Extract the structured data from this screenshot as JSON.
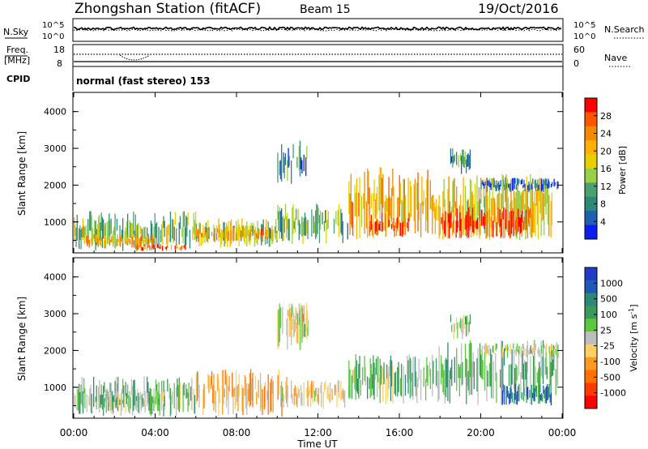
{
  "header": {
    "station": "Zhongshan Station (fitACF)",
    "beam": "Beam 15",
    "date": "19/Oct/2016"
  },
  "strip": {
    "nsky_label": "N.Sky",
    "nsearch_label": "N.Search",
    "nsky_ticks": [
      "10^5",
      "10^0"
    ],
    "nsearch_ticks": [
      "10^5",
      "10^0"
    ],
    "freq_label": "Freq.",
    "freq_unit": "[MHz]",
    "freq_ticks": [
      "18",
      "8"
    ],
    "nave_label": "Nave",
    "nave_ticks": [
      "60",
      "0"
    ],
    "cpid_label": "CPID",
    "cpid_text": "normal (fast stereo) 153"
  },
  "power_colorbar": {
    "label": "Power [dB]",
    "ticks": [
      "28",
      "24",
      "20",
      "16",
      "12",
      "8",
      "4"
    ],
    "colors": [
      "#ff0000",
      "#ff5500",
      "#f28a00",
      "#ffb000",
      "#e8d000",
      "#98d048",
      "#4aa070",
      "#2a8a78",
      "#1f60b0",
      "#0a1ef0"
    ]
  },
  "velocity_colorbar": {
    "label": "Velocity [m s^-1]",
    "ticks": [
      "1000",
      "500",
      "100",
      "25",
      "-25",
      "-100",
      "-500",
      "-1000"
    ],
    "colors": [
      "#1f3cc8",
      "#2058b8",
      "#2a8a78",
      "#3a9a5a",
      "#5cc840",
      "#bebebe",
      "#ffd060",
      "#ff9a20",
      "#ff7000",
      "#ff3a00",
      "#ff0000"
    ]
  },
  "chart_data": [
    {
      "type": "heatmap",
      "title": "Power",
      "ylabel": "Slant Range [km]",
      "xlabel": "",
      "x_range_hours": [
        0,
        24
      ],
      "y_range_km": [
        180,
        4500
      ],
      "yticks": [
        "1000",
        "2000",
        "3000",
        "4000"
      ],
      "colorbar_label": "Power [dB]",
      "color_range": [
        0,
        30
      ],
      "regions": [
        {
          "t": [
            0.0,
            6.0
          ],
          "r": [
            200,
            1300
          ],
          "v": 12
        },
        {
          "t": [
            0.5,
            4.0
          ],
          "r": [
            300,
            700
          ],
          "v": 20
        },
        {
          "t": [
            3.0,
            5.5
          ],
          "r": [
            200,
            400
          ],
          "v": 26
        },
        {
          "t": [
            6.0,
            10.0
          ],
          "r": [
            300,
            1100
          ],
          "v": 14
        },
        {
          "t": [
            6.0,
            10.0
          ],
          "r": [
            450,
            900
          ],
          "v": 22
        },
        {
          "t": [
            10.0,
            13.5
          ],
          "r": [
            400,
            1500
          ],
          "v": 11
        },
        {
          "t": [
            10.0,
            11.5
          ],
          "r": [
            2000,
            3300
          ],
          "v": 7
        },
        {
          "t": [
            13.5,
            17.5
          ],
          "r": [
            500,
            2500
          ],
          "v": 20
        },
        {
          "t": [
            14.5,
            16.5
          ],
          "r": [
            550,
            1250
          ],
          "v": 28
        },
        {
          "t": [
            17.5,
            23.5
          ],
          "r": [
            500,
            2300
          ],
          "v": 18
        },
        {
          "t": [
            18.0,
            22.5
          ],
          "r": [
            550,
            1400
          ],
          "v": 27
        },
        {
          "t": [
            18.5,
            19.5
          ],
          "r": [
            2300,
            3000
          ],
          "v": 7
        },
        {
          "t": [
            20.0,
            23.8
          ],
          "r": [
            1800,
            2200
          ],
          "v": 6
        }
      ]
    },
    {
      "type": "heatmap",
      "title": "Velocity",
      "ylabel": "Slant Range [km]",
      "xlabel": "Time UT",
      "x_range_hours": [
        0,
        24
      ],
      "y_range_km": [
        180,
        4500
      ],
      "yticks": [
        "1000",
        "2000",
        "3000",
        "4000"
      ],
      "xticks": [
        "00:00",
        "04:00",
        "08:00",
        "12:00",
        "16:00",
        "20:00",
        "00:00"
      ],
      "colorbar_label": "Velocity [m s^-1]",
      "color_range": [
        -1000,
        1000
      ],
      "regions": [
        {
          "t": [
            0.0,
            6.0
          ],
          "r": [
            200,
            1300
          ],
          "v": 200
        },
        {
          "t": [
            1.0,
            4.5
          ],
          "r": [
            300,
            900
          ],
          "v": 150
        },
        {
          "t": [
            6.0,
            10.5
          ],
          "r": [
            200,
            1500
          ],
          "v": -300
        },
        {
          "t": [
            10.0,
            13.5
          ],
          "r": [
            400,
            1200
          ],
          "v": -200
        },
        {
          "t": [
            10.0,
            11.5
          ],
          "r": [
            2000,
            3300
          ],
          "v": 0
        },
        {
          "t": [
            10.5,
            11.5
          ],
          "r": [
            2600,
            3300
          ],
          "v": -200
        },
        {
          "t": [
            13.5,
            17.5
          ],
          "r": [
            500,
            1900
          ],
          "v": 200
        },
        {
          "t": [
            17.5,
            23.8
          ],
          "r": [
            500,
            2300
          ],
          "v": 250
        },
        {
          "t": [
            21.0,
            23.5
          ],
          "r": [
            500,
            1100
          ],
          "v": 700
        },
        {
          "t": [
            18.5,
            19.5
          ],
          "r": [
            2300,
            3000
          ],
          "v": 0
        },
        {
          "t": [
            20.0,
            23.8
          ],
          "r": [
            1800,
            2200
          ],
          "v": 0
        }
      ]
    }
  ]
}
